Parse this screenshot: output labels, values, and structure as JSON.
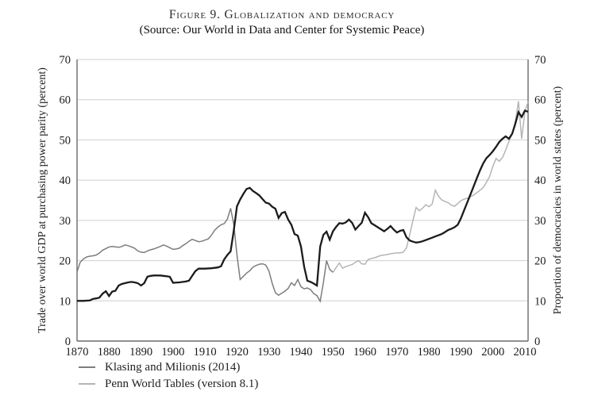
{
  "figure": {
    "title": "Figure 9. Globalization and democracy",
    "subtitle": "(Source: Our World in Data and Center for Systemic Peace)"
  },
  "chart_data": {
    "type": "line",
    "title": "Figure 9. Globalization and democracy",
    "subtitle": "(Source: Our World in Data and Center for Systemic Peace)",
    "grid": "horizontal",
    "background": "#ffffff",
    "grid_color": "#cfcfcf",
    "axis_color": "#6b6b6b",
    "x_axis": {
      "range": [
        1870,
        2011
      ],
      "ticks": [
        1870,
        1880,
        1890,
        1900,
        1910,
        1920,
        1930,
        1940,
        1950,
        1960,
        1970,
        1980,
        1990,
        2000,
        2010
      ]
    },
    "y_axis_left": {
      "label": "Trade over world GDP at purchasing power parity (percent)",
      "range": [
        0,
        70
      ],
      "ticks": [
        0,
        10,
        20,
        30,
        40,
        50,
        60,
        70
      ]
    },
    "y_axis_right": {
      "label": "Proportion of democracies in world states (percent)",
      "range": [
        0,
        70
      ],
      "ticks": [
        0,
        10,
        20,
        30,
        40,
        50,
        60,
        70
      ]
    },
    "legend": {
      "position": "bottom-left",
      "entries": [
        "Klasing and Milionis (2014)",
        "Penn World Tables (version 8.1)"
      ]
    },
    "series": [
      {
        "name": "Penn World Tables (version 8.1)",
        "role": "trade-openness-1950-2011",
        "axis": "left",
        "color": "#b5b5b5",
        "width": 1.5,
        "points": [
          [
            1950,
            17.1
          ],
          [
            1951,
            18.3
          ],
          [
            1952,
            19.4
          ],
          [
            1953,
            18.1
          ],
          [
            1954,
            18.5
          ],
          [
            1955,
            18.8
          ],
          [
            1956,
            19.0
          ],
          [
            1957,
            19.6
          ],
          [
            1958,
            20.0
          ],
          [
            1959,
            19.2
          ],
          [
            1960,
            19.1
          ],
          [
            1961,
            20.3
          ],
          [
            1962,
            20.5
          ],
          [
            1963,
            20.7
          ],
          [
            1964,
            21.0
          ],
          [
            1965,
            21.3
          ],
          [
            1966,
            21.4
          ],
          [
            1967,
            21.5
          ],
          [
            1968,
            21.7
          ],
          [
            1969,
            21.8
          ],
          [
            1970,
            21.9
          ],
          [
            1971,
            21.9
          ],
          [
            1972,
            22.1
          ],
          [
            1973,
            23.2
          ],
          [
            1974,
            26.5
          ],
          [
            1975,
            30.0
          ],
          [
            1976,
            33.2
          ],
          [
            1977,
            32.4
          ],
          [
            1978,
            33.0
          ],
          [
            1979,
            33.9
          ],
          [
            1980,
            33.4
          ],
          [
            1981,
            34.0
          ],
          [
            1982,
            37.5
          ],
          [
            1983,
            36.0
          ],
          [
            1984,
            35.1
          ],
          [
            1985,
            34.7
          ],
          [
            1986,
            34.4
          ],
          [
            1987,
            33.8
          ],
          [
            1988,
            33.5
          ],
          [
            1989,
            34.2
          ],
          [
            1990,
            34.9
          ],
          [
            1991,
            35.3
          ],
          [
            1992,
            35.5
          ],
          [
            1993,
            35.9
          ],
          [
            1994,
            36.3
          ],
          [
            1995,
            36.9
          ],
          [
            1996,
            37.5
          ],
          [
            1997,
            38.2
          ],
          [
            1998,
            39.5
          ],
          [
            1999,
            41.0
          ],
          [
            2000,
            43.5
          ],
          [
            2001,
            45.4
          ],
          [
            2002,
            44.7
          ],
          [
            2003,
            45.6
          ],
          [
            2004,
            47.5
          ],
          [
            2005,
            49.6
          ],
          [
            2006,
            51.5
          ],
          [
            2007,
            54.5
          ],
          [
            2008,
            59.6
          ],
          [
            2009,
            50.3
          ],
          [
            2010,
            57.0
          ],
          [
            2011,
            59.5
          ]
        ]
      },
      {
        "name": "Klasing and Milionis (2014)",
        "role": "trade-openness-1870-1949",
        "axis": "left",
        "color": "#7d7d7d",
        "width": 1.5,
        "points": [
          [
            1870,
            17.2
          ],
          [
            1871,
            19.6
          ],
          [
            1872,
            20.4
          ],
          [
            1873,
            20.9
          ],
          [
            1874,
            21.1
          ],
          [
            1875,
            21.2
          ],
          [
            1876,
            21.4
          ],
          [
            1877,
            21.9
          ],
          [
            1878,
            22.6
          ],
          [
            1879,
            23.0
          ],
          [
            1880,
            23.4
          ],
          [
            1881,
            23.5
          ],
          [
            1882,
            23.4
          ],
          [
            1883,
            23.3
          ],
          [
            1884,
            23.5
          ],
          [
            1885,
            23.9
          ],
          [
            1886,
            23.7
          ],
          [
            1887,
            23.4
          ],
          [
            1888,
            23.1
          ],
          [
            1889,
            22.4
          ],
          [
            1890,
            22.1
          ],
          [
            1891,
            22.0
          ],
          [
            1892,
            22.4
          ],
          [
            1893,
            22.7
          ],
          [
            1894,
            22.9
          ],
          [
            1895,
            23.2
          ],
          [
            1896,
            23.5
          ],
          [
            1897,
            23.9
          ],
          [
            1898,
            23.6
          ],
          [
            1899,
            23.2
          ],
          [
            1900,
            22.8
          ],
          [
            1901,
            22.9
          ],
          [
            1902,
            23.1
          ],
          [
            1903,
            23.7
          ],
          [
            1904,
            24.2
          ],
          [
            1905,
            24.8
          ],
          [
            1906,
            25.3
          ],
          [
            1907,
            25.0
          ],
          [
            1908,
            24.7
          ],
          [
            1909,
            24.8
          ],
          [
            1910,
            25.1
          ],
          [
            1911,
            25.4
          ],
          [
            1912,
            26.3
          ],
          [
            1913,
            27.5
          ],
          [
            1914,
            28.3
          ],
          [
            1915,
            28.9
          ],
          [
            1916,
            29.2
          ],
          [
            1917,
            30.3
          ],
          [
            1918,
            33.0
          ],
          [
            1919,
            29.0
          ],
          [
            1920,
            21.4
          ],
          [
            1921,
            15.3
          ],
          [
            1922,
            16.1
          ],
          [
            1923,
            16.9
          ],
          [
            1924,
            17.5
          ],
          [
            1925,
            18.4
          ],
          [
            1926,
            18.8
          ],
          [
            1927,
            19.1
          ],
          [
            1928,
            19.2
          ],
          [
            1929,
            18.9
          ],
          [
            1930,
            17.4
          ],
          [
            1931,
            14.4
          ],
          [
            1932,
            12.0
          ],
          [
            1933,
            11.4
          ],
          [
            1934,
            11.9
          ],
          [
            1935,
            12.4
          ],
          [
            1936,
            13.1
          ],
          [
            1937,
            14.5
          ],
          [
            1938,
            13.8
          ],
          [
            1939,
            15.3
          ],
          [
            1940,
            13.5
          ],
          [
            1941,
            13.0
          ],
          [
            1942,
            13.2
          ],
          [
            1943,
            12.8
          ],
          [
            1944,
            11.8
          ],
          [
            1945,
            11.3
          ],
          [
            1946,
            9.9
          ],
          [
            1947,
            14.5
          ],
          [
            1948,
            20.0
          ],
          [
            1949,
            17.8
          ],
          [
            1950,
            17.1
          ]
        ]
      },
      {
        "name": "Proportion of democracies in world states (percent)",
        "role": "democracy-share",
        "axis": "right",
        "color": "#1b1b1b",
        "width": 2.3,
        "points": [
          [
            1870,
            10.0
          ],
          [
            1872,
            10.0
          ],
          [
            1874,
            10.1
          ],
          [
            1875,
            10.5
          ],
          [
            1876,
            10.6
          ],
          [
            1877,
            10.8
          ],
          [
            1878,
            11.8
          ],
          [
            1879,
            12.4
          ],
          [
            1880,
            11.2
          ],
          [
            1881,
            12.3
          ],
          [
            1882,
            12.5
          ],
          [
            1883,
            13.8
          ],
          [
            1884,
            14.2
          ],
          [
            1885,
            14.4
          ],
          [
            1886,
            14.6
          ],
          [
            1887,
            14.7
          ],
          [
            1888,
            14.6
          ],
          [
            1889,
            14.4
          ],
          [
            1890,
            13.8
          ],
          [
            1891,
            14.4
          ],
          [
            1892,
            16.0
          ],
          [
            1893,
            16.2
          ],
          [
            1894,
            16.3
          ],
          [
            1895,
            16.3
          ],
          [
            1896,
            16.3
          ],
          [
            1897,
            16.2
          ],
          [
            1898,
            16.1
          ],
          [
            1899,
            16.0
          ],
          [
            1900,
            14.5
          ],
          [
            1902,
            14.6
          ],
          [
            1904,
            14.8
          ],
          [
            1905,
            15.0
          ],
          [
            1906,
            16.2
          ],
          [
            1907,
            17.4
          ],
          [
            1908,
            18.0
          ],
          [
            1910,
            18.0
          ],
          [
            1912,
            18.1
          ],
          [
            1914,
            18.3
          ],
          [
            1915,
            18.6
          ],
          [
            1916,
            20.3
          ],
          [
            1917,
            21.4
          ],
          [
            1918,
            22.3
          ],
          [
            1919,
            27.5
          ],
          [
            1920,
            33.5
          ],
          [
            1921,
            35.2
          ],
          [
            1922,
            36.6
          ],
          [
            1923,
            37.8
          ],
          [
            1924,
            38.1
          ],
          [
            1925,
            37.3
          ],
          [
            1926,
            36.8
          ],
          [
            1927,
            36.2
          ],
          [
            1928,
            35.3
          ],
          [
            1929,
            34.4
          ],
          [
            1930,
            34.2
          ],
          [
            1931,
            33.4
          ],
          [
            1932,
            32.9
          ],
          [
            1933,
            30.6
          ],
          [
            1934,
            31.8
          ],
          [
            1935,
            32.1
          ],
          [
            1936,
            30.2
          ],
          [
            1937,
            28.9
          ],
          [
            1938,
            26.6
          ],
          [
            1939,
            26.2
          ],
          [
            1940,
            23.5
          ],
          [
            1941,
            18.5
          ],
          [
            1942,
            15.0
          ],
          [
            1943,
            14.7
          ],
          [
            1944,
            14.3
          ],
          [
            1945,
            13.8
          ],
          [
            1946,
            23.5
          ],
          [
            1947,
            26.4
          ],
          [
            1948,
            27.2
          ],
          [
            1949,
            25.2
          ],
          [
            1950,
            27.3
          ],
          [
            1951,
            28.4
          ],
          [
            1952,
            29.3
          ],
          [
            1953,
            29.2
          ],
          [
            1954,
            29.5
          ],
          [
            1955,
            30.2
          ],
          [
            1956,
            29.4
          ],
          [
            1957,
            27.7
          ],
          [
            1958,
            28.6
          ],
          [
            1959,
            29.4
          ],
          [
            1960,
            31.9
          ],
          [
            1961,
            30.8
          ],
          [
            1962,
            29.3
          ],
          [
            1963,
            28.8
          ],
          [
            1964,
            28.3
          ],
          [
            1965,
            27.8
          ],
          [
            1966,
            27.3
          ],
          [
            1967,
            27.9
          ],
          [
            1968,
            28.6
          ],
          [
            1969,
            27.7
          ],
          [
            1970,
            27.0
          ],
          [
            1971,
            27.4
          ],
          [
            1972,
            27.6
          ],
          [
            1973,
            25.8
          ],
          [
            1974,
            25.0
          ],
          [
            1975,
            24.7
          ],
          [
            1976,
            24.5
          ],
          [
            1977,
            24.6
          ],
          [
            1978,
            24.8
          ],
          [
            1979,
            25.1
          ],
          [
            1980,
            25.4
          ],
          [
            1981,
            25.7
          ],
          [
            1982,
            26.0
          ],
          [
            1983,
            26.3
          ],
          [
            1984,
            26.6
          ],
          [
            1985,
            27.1
          ],
          [
            1986,
            27.6
          ],
          [
            1987,
            27.9
          ],
          [
            1988,
            28.3
          ],
          [
            1989,
            28.9
          ],
          [
            1990,
            30.5
          ],
          [
            1991,
            32.5
          ],
          [
            1992,
            34.5
          ],
          [
            1993,
            36.5
          ],
          [
            1994,
            38.5
          ],
          [
            1995,
            40.5
          ],
          [
            1996,
            42.5
          ],
          [
            1997,
            44.2
          ],
          [
            1998,
            45.5
          ],
          [
            1999,
            46.3
          ],
          [
            2000,
            47.2
          ],
          [
            2001,
            48.3
          ],
          [
            2002,
            49.5
          ],
          [
            2003,
            50.3
          ],
          [
            2004,
            50.9
          ],
          [
            2005,
            50.3
          ],
          [
            2006,
            51.5
          ],
          [
            2007,
            54.0
          ],
          [
            2008,
            56.9
          ],
          [
            2009,
            55.7
          ],
          [
            2010,
            57.3
          ],
          [
            2011,
            57.0
          ]
        ]
      }
    ]
  }
}
